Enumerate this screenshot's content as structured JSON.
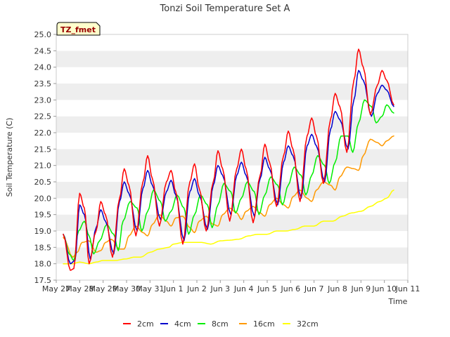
{
  "chart_data": {
    "type": "line",
    "title": "Tonzi Soil Temperature Set A",
    "xlabel": "Time",
    "ylabel": "Soil Temperature (C)",
    "badge": "TZ_fmet",
    "xlim": [
      0,
      15
    ],
    "ylim": [
      17.5,
      25.0
    ],
    "yticks": [
      "17.5",
      "18.0",
      "18.5",
      "19.0",
      "19.5",
      "20.0",
      "20.5",
      "21.0",
      "21.5",
      "22.0",
      "22.5",
      "23.0",
      "23.5",
      "24.0",
      "24.5",
      "25.0"
    ],
    "xtick_labels": [
      "May 27",
      "May 28",
      "May 29",
      "May 30",
      "May 31",
      "Jun 1",
      "Jun 2",
      "Jun 3",
      "Jun 4",
      "Jun 5",
      "Jun 6",
      "Jun 7",
      "Jun 8",
      "Jun 9",
      "Jun 10",
      "Jun 11"
    ],
    "series": [
      {
        "name": "2cm",
        "color": "#ff0000",
        "x": [
          0.3,
          0.6,
          0.75,
          1.0,
          1.2,
          1.4,
          1.7,
          1.9,
          2.1,
          2.4,
          2.7,
          2.9,
          3.1,
          3.4,
          3.7,
          3.9,
          4.1,
          4.4,
          4.7,
          4.9,
          5.1,
          5.4,
          5.7,
          5.9,
          6.1,
          6.4,
          6.7,
          6.9,
          7.1,
          7.4,
          7.7,
          7.9,
          8.1,
          8.4,
          8.7,
          8.9,
          9.1,
          9.4,
          9.7,
          9.9,
          10.1,
          10.4,
          10.7,
          10.9,
          11.1,
          11.4,
          11.7,
          11.9,
          12.1,
          12.4,
          12.7,
          12.9,
          13.1,
          13.4,
          13.7,
          13.9,
          14.1,
          14.4
        ],
        "y": [
          18.9,
          17.8,
          17.85,
          20.15,
          19.7,
          18.0,
          19.0,
          19.9,
          19.5,
          18.2,
          20.0,
          20.9,
          20.4,
          18.85,
          20.5,
          21.3,
          20.6,
          19.15,
          20.5,
          20.85,
          20.2,
          18.6,
          20.5,
          21.05,
          20.3,
          19.0,
          20.5,
          21.45,
          20.9,
          19.3,
          20.9,
          21.5,
          20.9,
          19.25,
          20.7,
          21.65,
          21.1,
          19.75,
          21.3,
          22.05,
          21.5,
          19.9,
          21.9,
          22.45,
          21.9,
          20.45,
          22.4,
          23.2,
          22.8,
          21.4,
          23.6,
          24.55,
          24.0,
          22.55,
          23.45,
          23.9,
          23.6,
          22.85
        ]
      },
      {
        "name": "4cm",
        "color": "#0000cc",
        "x": [
          0.3,
          0.6,
          0.8,
          1.0,
          1.2,
          1.45,
          1.7,
          1.9,
          2.1,
          2.45,
          2.7,
          2.9,
          3.1,
          3.45,
          3.7,
          3.9,
          4.1,
          4.45,
          4.7,
          4.9,
          5.1,
          5.45,
          5.7,
          5.9,
          6.1,
          6.45,
          6.7,
          6.9,
          7.1,
          7.45,
          7.7,
          7.9,
          8.1,
          8.45,
          8.7,
          8.9,
          9.1,
          9.45,
          9.7,
          9.9,
          10.1,
          10.45,
          10.7,
          10.9,
          11.1,
          11.45,
          11.7,
          11.9,
          12.1,
          12.45,
          12.7,
          12.9,
          13.1,
          13.45,
          13.7,
          13.9,
          14.1,
          14.4
        ],
        "y": [
          18.9,
          18.0,
          18.1,
          19.8,
          19.5,
          18.15,
          19.1,
          19.65,
          19.3,
          18.3,
          19.9,
          20.5,
          20.15,
          19.0,
          20.3,
          20.85,
          20.4,
          19.35,
          20.2,
          20.55,
          20.1,
          18.7,
          20.2,
          20.6,
          20.1,
          19.05,
          20.4,
          21.0,
          20.7,
          19.5,
          20.7,
          21.1,
          20.7,
          19.45,
          20.6,
          21.25,
          20.9,
          19.8,
          21.1,
          21.6,
          21.3,
          20.0,
          21.6,
          21.95,
          21.6,
          20.5,
          22.1,
          22.65,
          22.4,
          21.5,
          23.0,
          23.9,
          23.6,
          22.5,
          23.2,
          23.45,
          23.3,
          22.8
        ]
      },
      {
        "name": "8cm",
        "color": "#00ee00",
        "x": [
          0.3,
          0.55,
          0.75,
          0.95,
          1.2,
          1.4,
          1.6,
          1.85,
          2.15,
          2.45,
          2.65,
          2.85,
          3.15,
          3.45,
          3.65,
          3.9,
          4.15,
          4.45,
          4.65,
          4.9,
          5.15,
          5.45,
          5.65,
          5.9,
          6.15,
          6.45,
          6.65,
          6.9,
          7.15,
          7.45,
          7.65,
          7.9,
          8.15,
          8.45,
          8.65,
          8.9,
          9.15,
          9.45,
          9.65,
          9.9,
          10.15,
          10.45,
          10.65,
          10.9,
          11.15,
          11.45,
          11.65,
          11.9,
          12.15,
          12.45,
          12.65,
          12.9,
          13.15,
          13.45,
          13.65,
          13.9,
          14.1,
          14.4
        ],
        "y": [
          18.9,
          18.3,
          18.1,
          19.0,
          19.3,
          18.85,
          18.3,
          18.7,
          19.2,
          18.9,
          18.4,
          19.3,
          19.9,
          19.7,
          19.0,
          19.6,
          20.25,
          19.9,
          19.3,
          19.6,
          20.1,
          19.7,
          18.9,
          19.5,
          20.1,
          19.8,
          19.1,
          19.8,
          20.45,
          20.2,
          19.55,
          20.0,
          20.5,
          20.2,
          19.5,
          20.1,
          20.65,
          20.4,
          19.8,
          20.4,
          20.95,
          20.7,
          20.1,
          20.7,
          21.3,
          21.0,
          20.45,
          21.1,
          21.9,
          21.9,
          21.4,
          22.3,
          23.0,
          22.8,
          22.3,
          22.5,
          22.85,
          22.6
        ]
      },
      {
        "name": "16cm",
        "color": "#ff9900",
        "x": [
          0.3,
          0.7,
          0.9,
          1.1,
          1.4,
          1.7,
          1.9,
          2.1,
          2.35,
          2.7,
          2.9,
          3.1,
          3.4,
          3.7,
          3.9,
          4.1,
          4.4,
          4.7,
          4.9,
          5.1,
          5.4,
          5.7,
          5.9,
          6.1,
          6.4,
          6.7,
          6.9,
          7.1,
          7.4,
          7.7,
          7.9,
          8.1,
          8.4,
          8.7,
          8.9,
          9.1,
          9.4,
          9.7,
          9.9,
          10.1,
          10.4,
          10.7,
          10.9,
          11.1,
          11.4,
          11.7,
          11.9,
          12.1,
          12.4,
          12.7,
          12.9,
          13.1,
          13.4,
          13.7,
          13.9,
          14.1,
          14.4
        ],
        "y": [
          18.8,
          18.2,
          18.35,
          18.65,
          18.7,
          18.35,
          18.4,
          18.65,
          18.75,
          18.45,
          18.45,
          18.85,
          19.15,
          18.95,
          18.85,
          19.2,
          19.5,
          19.3,
          19.15,
          19.4,
          19.45,
          19.1,
          18.95,
          19.3,
          19.45,
          19.2,
          19.15,
          19.5,
          19.7,
          19.55,
          19.35,
          19.6,
          19.75,
          19.55,
          19.45,
          19.8,
          20.0,
          19.8,
          19.7,
          20.05,
          20.25,
          20.0,
          19.9,
          20.25,
          20.5,
          20.4,
          20.25,
          20.65,
          20.95,
          20.9,
          20.85,
          21.3,
          21.8,
          21.7,
          21.6,
          21.75,
          21.9
        ]
      },
      {
        "name": "32cm",
        "color": "#ffff00",
        "x": [
          0.3,
          0.7,
          1.0,
          1.4,
          1.7,
          2.0,
          2.5,
          3.0,
          3.3,
          3.6,
          4.0,
          4.4,
          4.8,
          5.0,
          5.4,
          5.8,
          6.2,
          6.6,
          7.0,
          7.4,
          7.8,
          8.2,
          8.6,
          9.0,
          9.4,
          9.8,
          10.2,
          10.6,
          11.0,
          11.4,
          11.8,
          12.2,
          12.6,
          13.0,
          13.4,
          13.8,
          14.1,
          14.4
        ],
        "y": [
          18.0,
          18.0,
          18.05,
          18.0,
          18.05,
          18.1,
          18.1,
          18.15,
          18.2,
          18.2,
          18.35,
          18.45,
          18.5,
          18.6,
          18.65,
          18.65,
          18.65,
          18.6,
          18.7,
          18.72,
          18.75,
          18.85,
          18.9,
          18.9,
          19.0,
          19.0,
          19.05,
          19.15,
          19.15,
          19.3,
          19.3,
          19.45,
          19.55,
          19.6,
          19.75,
          19.9,
          20.0,
          20.25
        ]
      }
    ]
  },
  "legend": {
    "items": [
      {
        "label": "2cm",
        "color": "#ff0000"
      },
      {
        "label": "4cm",
        "color": "#0000cc"
      },
      {
        "label": "8cm",
        "color": "#00ee00"
      },
      {
        "label": "16cm",
        "color": "#ff9900"
      },
      {
        "label": "32cm",
        "color": "#ffff00"
      }
    ]
  },
  "colors": {
    "band": "#eeeeee",
    "plot_bg": "#ffffff",
    "badge_bg": "#ffffcc",
    "badge_text": "#990000"
  }
}
